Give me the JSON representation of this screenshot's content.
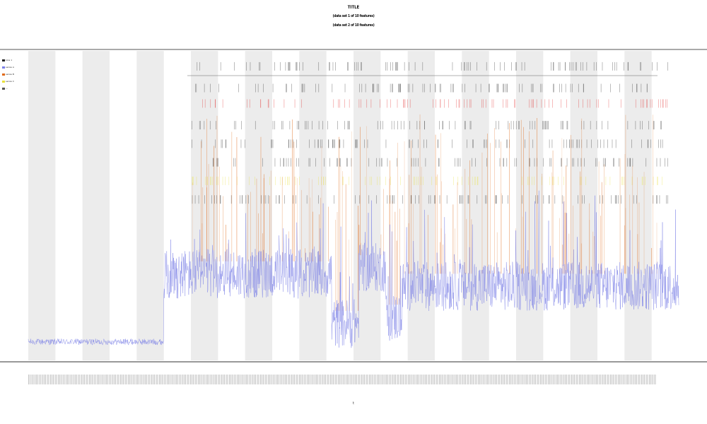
{
  "chart_data": {
    "type": "line",
    "title": "TITLE",
    "subtitle": "(data set 1 of 10 features)",
    "subtitle_2": "(data set 2 of 10 features)",
    "xlabel": "t",
    "ylabel": "",
    "x_range": [
      0,
      1200
    ],
    "y_range": [
      0,
      1
    ],
    "grid": false,
    "legend_position": "top-left",
    "shaded_band_color": "#ececec",
    "series": [
      {
        "name": "signal",
        "color": "#7b80e6",
        "kind": "line"
      },
      {
        "name": "peak",
        "color": "#e06a1a",
        "kind": "spike"
      },
      {
        "name": "marker",
        "color": "#e8e13a",
        "kind": "event"
      },
      {
        "name": "event",
        "color": "#e02020",
        "kind": "event"
      },
      {
        "name": "track",
        "color": "#222222",
        "kind": "event"
      }
    ],
    "legend_entries": [
      "Line 1",
      "series A",
      "series B",
      "series C",
      "—"
    ],
    "signal_profile": {
      "baseline_segments": [
        {
          "from": 0,
          "to": 250,
          "level": 0.06
        },
        {
          "from": 250,
          "to": 560,
          "level": 0.28
        },
        {
          "from": 560,
          "to": 610,
          "level": 0.12
        },
        {
          "from": 610,
          "to": 660,
          "level": 0.3
        },
        {
          "from": 660,
          "to": 690,
          "level": 0.14
        },
        {
          "from": 690,
          "to": 1200,
          "level": 0.24
        }
      ]
    },
    "event_rows": [
      {
        "series": "track",
        "y": 0.95
      },
      {
        "series": "track",
        "y": 0.88
      },
      {
        "series": "event",
        "y": 0.83
      },
      {
        "series": "track",
        "y": 0.76
      },
      {
        "series": "track",
        "y": 0.7
      },
      {
        "series": "track",
        "y": 0.64
      },
      {
        "series": "marker",
        "y": 0.58
      },
      {
        "series": "track",
        "y": 0.52
      }
    ],
    "bands": [
      [
        0,
        50
      ],
      [
        100,
        150
      ],
      [
        200,
        250
      ],
      [
        300,
        350
      ],
      [
        400,
        450
      ],
      [
        500,
        550
      ],
      [
        600,
        650
      ],
      [
        700,
        750
      ],
      [
        800,
        850
      ],
      [
        900,
        950
      ],
      [
        1000,
        1050
      ],
      [
        1100,
        1150
      ]
    ]
  }
}
